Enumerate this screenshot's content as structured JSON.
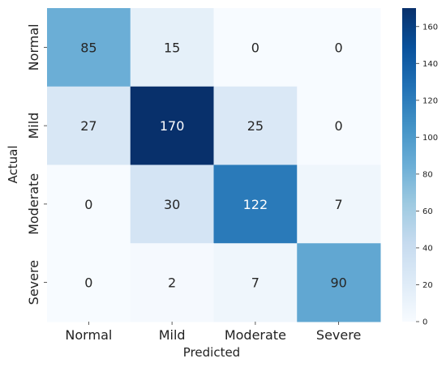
{
  "chart_data": {
    "type": "heatmap",
    "title": "",
    "xlabel": "Predicted",
    "ylabel": "Actual",
    "x_categories": [
      "Normal",
      "Mild",
      "Moderate",
      "Severe"
    ],
    "y_categories": [
      "Normal",
      "Mild",
      "Moderate",
      "Severe"
    ],
    "values": [
      [
        85,
        15,
        0,
        0
      ],
      [
        27,
        170,
        25,
        0
      ],
      [
        0,
        30,
        122,
        7
      ],
      [
        0,
        2,
        7,
        90
      ]
    ],
    "colormap": "Blues",
    "colorbar": {
      "min": 0,
      "max": 170,
      "ticks": [
        0,
        20,
        40,
        60,
        80,
        100,
        120,
        140,
        160
      ]
    }
  }
}
